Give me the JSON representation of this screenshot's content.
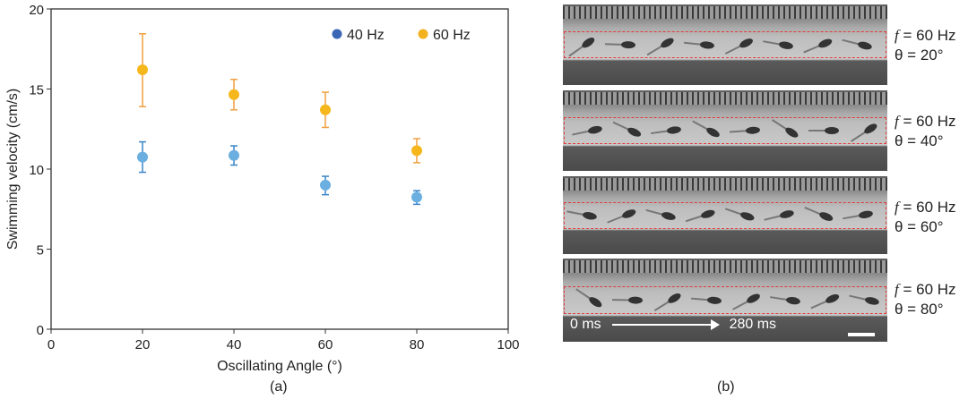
{
  "chart_data": {
    "type": "scatter",
    "xlabel": "Oscillating Angle (°)",
    "ylabel": "Swimming velocity (cm/s)",
    "xlim": [
      0,
      100
    ],
    "ylim": [
      0,
      20
    ],
    "xticks": [
      0,
      20,
      40,
      60,
      80,
      100
    ],
    "yticks": [
      0,
      5,
      10,
      15,
      20
    ],
    "grid": false,
    "legend_position": "top-right",
    "legend": [
      {
        "label": "40 Hz",
        "color": "#3a66b5"
      },
      {
        "label": "60 Hz",
        "color": "#f2b21f"
      }
    ],
    "series": [
      {
        "name": "40 Hz",
        "point_color": "#6aafe0",
        "error_color": "#3a85c8",
        "x": [
          20,
          40,
          60,
          80
        ],
        "y": [
          10.75,
          10.85,
          9.0,
          8.25
        ],
        "err_high": [
          11.7,
          11.45,
          9.55,
          8.65
        ],
        "err_low": [
          9.8,
          10.25,
          8.4,
          7.8
        ]
      },
      {
        "name": "60 Hz",
        "point_color": "#f5b71c",
        "error_color": "#f0a040",
        "x": [
          20,
          40,
          60,
          80
        ],
        "y": [
          16.2,
          14.65,
          13.7,
          11.15
        ],
        "err_high": [
          18.45,
          15.6,
          14.8,
          11.9
        ],
        "err_low": [
          13.9,
          13.7,
          12.6,
          10.4
        ]
      }
    ]
  },
  "captions": {
    "a": "(a)",
    "b": "(b)"
  },
  "panels": [
    {
      "f": "f",
      "f_value": " = 60 Hz",
      "theta": "θ = 20°"
    },
    {
      "f": "f",
      "f_value": " = 60 Hz",
      "theta": "θ = 40°"
    },
    {
      "f": "f",
      "f_value": " = 60 Hz",
      "theta": "θ = 60°"
    },
    {
      "f": "f",
      "f_value": " = 60 Hz",
      "theta": "θ = 80°"
    }
  ],
  "timeline": {
    "start": "0 ms",
    "end": "280 ms"
  },
  "roi_color": "#e23b3b"
}
